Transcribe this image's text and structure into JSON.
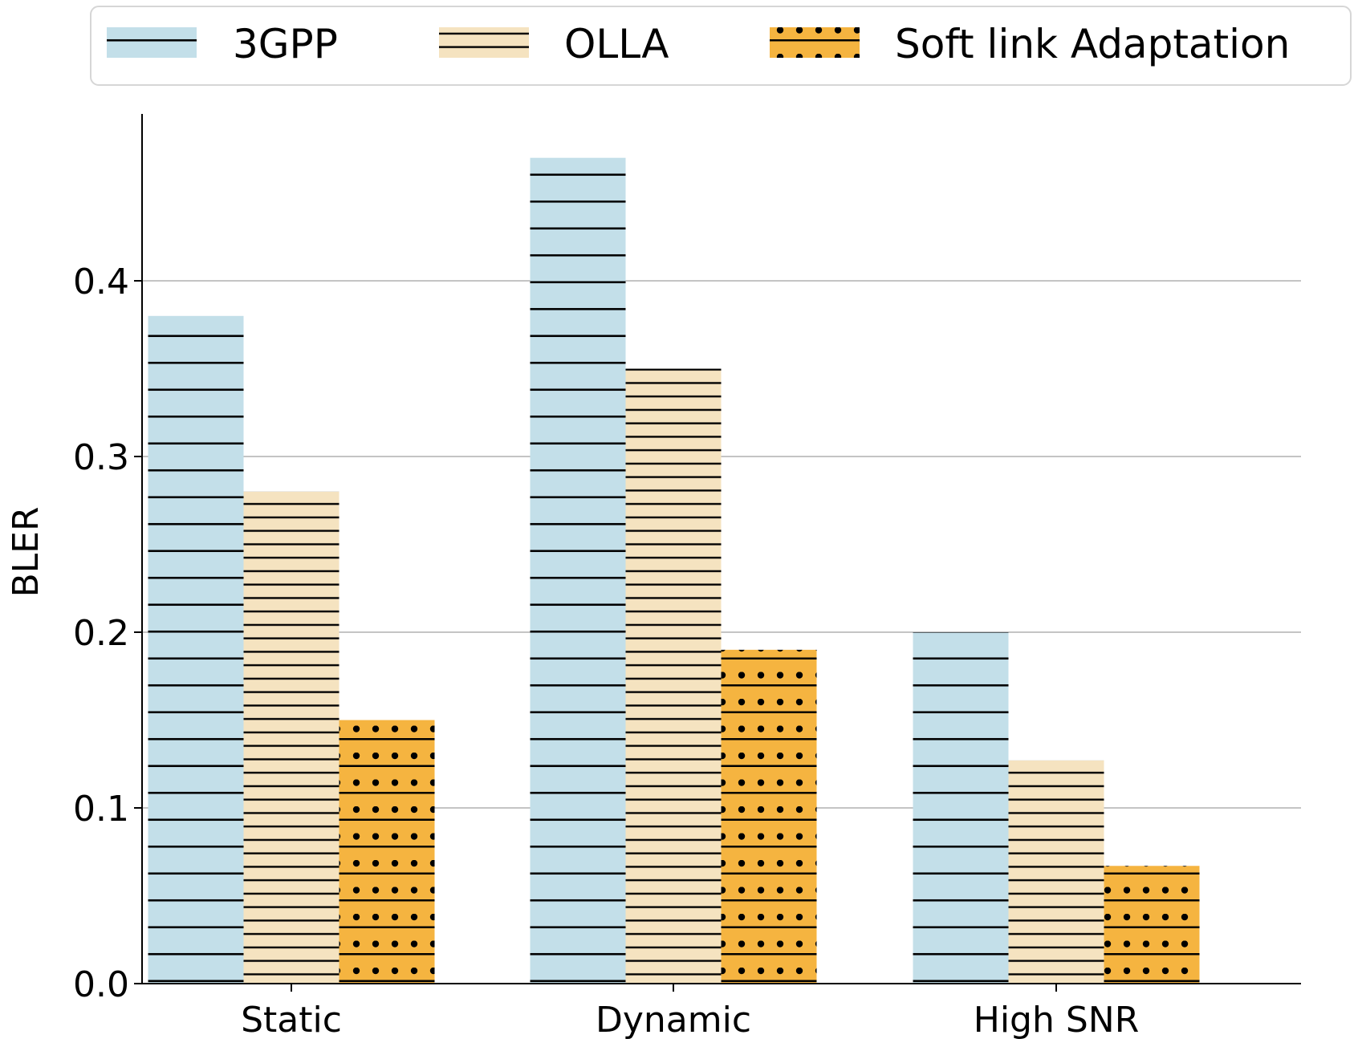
{
  "chart_data": {
    "type": "bar",
    "title": "",
    "xlabel": "",
    "ylabel": "BLER",
    "categories": [
      "Static",
      "Dynamic",
      "High SNR"
    ],
    "series": [
      {
        "name": "3GPP",
        "values": [
          0.38,
          0.47,
          0.2
        ],
        "color": "#c3dfe9",
        "hatch": "lines"
      },
      {
        "name": "OLLA",
        "values": [
          0.28,
          0.35,
          0.127
        ],
        "color": "#f5e3c0",
        "hatch": "dense-lines"
      },
      {
        "name": "Soft link Adaptation",
        "values": [
          0.15,
          0.19,
          0.067
        ],
        "color": "#f5b440",
        "hatch": "lines-dots"
      }
    ],
    "ylim": [
      0,
      0.49
    ],
    "yticks": [
      0.0,
      0.1,
      0.2,
      0.3,
      0.4
    ],
    "ytick_labels": [
      "0.0",
      "0.1",
      "0.2",
      "0.3",
      "0.4"
    ],
    "grid": "y",
    "legend": "top"
  }
}
